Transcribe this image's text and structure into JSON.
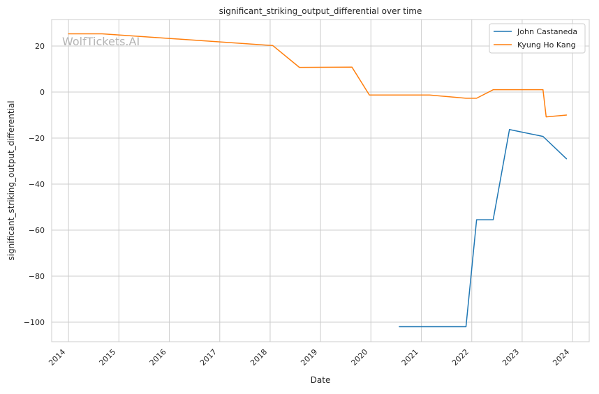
{
  "chart_data": {
    "type": "line",
    "title": "significant_striking_output_differential over time",
    "xlabel": "Date",
    "ylabel": "significant_striking_output_differential",
    "watermark": "WolfTickets.AI",
    "xlim": [
      "2013-09-01",
      "2024-05-01"
    ],
    "ylim": [
      -108.5,
      31.5
    ],
    "x_ticks": [
      "2014",
      "2015",
      "2016",
      "2017",
      "2018",
      "2019",
      "2020",
      "2021",
      "2022",
      "2023",
      "2024"
    ],
    "y_ticks": [
      20,
      0,
      -20,
      -40,
      -60,
      -80,
      -100
    ],
    "y_tick_labels": [
      "20",
      "0",
      "−20",
      "−40",
      "−60",
      "−80",
      "−100"
    ],
    "grid": true,
    "legend_position": "top-right",
    "series": [
      {
        "name": "John Castaneda",
        "color": "#1f77b4",
        "points": [
          [
            "2020-07-25",
            -102
          ],
          [
            "2021-11-20",
            -102
          ],
          [
            "2022-02-05",
            -55.5
          ],
          [
            "2022-06-05",
            -55.5
          ],
          [
            "2022-10-01",
            -16.3
          ],
          [
            "2023-06-01",
            -19.3
          ],
          [
            "2023-11-18",
            -29
          ]
        ]
      },
      {
        "name": "Kyung Ho Kang",
        "color": "#ff7f0e",
        "points": [
          [
            "2014-01-01",
            25.3
          ],
          [
            "2014-09-01",
            25.3
          ],
          [
            "2018-01-20",
            20.2
          ],
          [
            "2018-08-01",
            10.7
          ],
          [
            "2019-08-17",
            10.8
          ],
          [
            "2019-12-21",
            -1.3
          ],
          [
            "2021-03-01",
            -1.3
          ],
          [
            "2021-11-20",
            -2.7
          ],
          [
            "2022-02-05",
            -2.7
          ],
          [
            "2022-06-05",
            1
          ],
          [
            "2023-06-01",
            1
          ],
          [
            "2023-06-24",
            -10.8
          ],
          [
            "2023-11-18",
            -10
          ]
        ]
      }
    ]
  }
}
